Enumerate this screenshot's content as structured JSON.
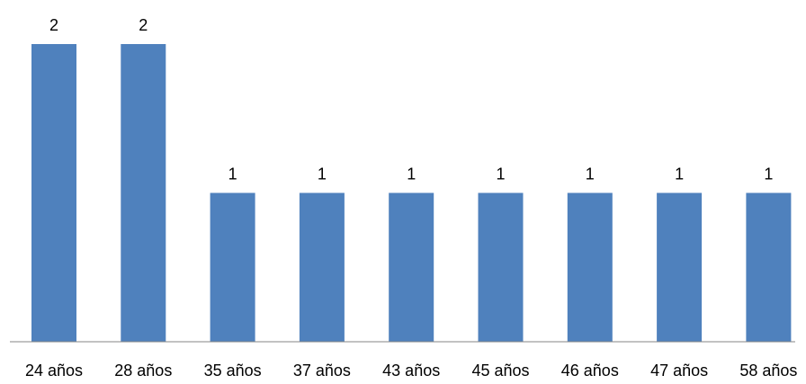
{
  "chart_data": {
    "type": "bar",
    "categories": [
      "24 años",
      "28 años",
      "35 años",
      "37 años",
      "43 años",
      "45 años",
      "46 años",
      "47 años",
      "58 años"
    ],
    "values": [
      2,
      2,
      1,
      1,
      1,
      1,
      1,
      1,
      1
    ],
    "data_labels": [
      "2",
      "2",
      "1",
      "1",
      "1",
      "1",
      "1",
      "1",
      "1"
    ],
    "title": "",
    "xlabel": "",
    "ylabel": "",
    "ylim": [
      0,
      2
    ],
    "grid": false,
    "legend": "none",
    "bar_color": "#4F81BD",
    "axis_color": "#868686"
  }
}
